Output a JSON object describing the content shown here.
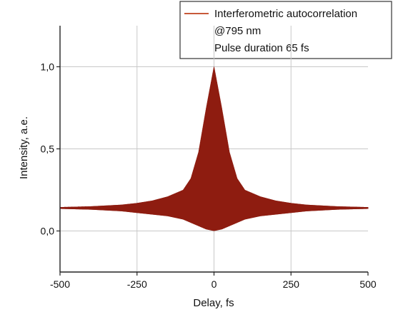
{
  "chart_data": {
    "type": "line",
    "xlabel": "Delay, fs",
    "ylabel": "Intensity, a.e.",
    "xlim": [
      -500,
      500
    ],
    "ylim": [
      -0.25,
      1.25
    ],
    "x_ticks": [
      -500,
      -250,
      0,
      250,
      500
    ],
    "x_tick_labels": [
      "-500",
      "-250",
      "0",
      "250",
      "500"
    ],
    "y_ticks": [
      0.0,
      0.5,
      1.0
    ],
    "y_tick_labels": [
      "0,0",
      "0,5",
      "1,0"
    ],
    "grid": true,
    "legend_position": "top-right",
    "series": [
      {
        "name": "Interferometric autocorrelation",
        "color": "#b5361d",
        "fill_color": "#8e1c10",
        "baseline": 0.14,
        "upper_envelope": {
          "x": [
            -500,
            -400,
            -300,
            -250,
            -200,
            -150,
            -100,
            -75,
            -50,
            -25,
            0,
            25,
            50,
            75,
            100,
            150,
            200,
            250,
            300,
            400,
            500
          ],
          "y": [
            0.145,
            0.15,
            0.16,
            0.17,
            0.185,
            0.21,
            0.25,
            0.32,
            0.48,
            0.75,
            1.0,
            0.75,
            0.48,
            0.32,
            0.25,
            0.21,
            0.185,
            0.17,
            0.16,
            0.15,
            0.145
          ]
        },
        "lower_envelope": {
          "x": [
            -500,
            -400,
            -300,
            -250,
            -200,
            -150,
            -100,
            -75,
            -50,
            -25,
            0,
            25,
            50,
            75,
            100,
            150,
            200,
            250,
            300,
            400,
            500
          ],
          "y": [
            0.135,
            0.13,
            0.12,
            0.11,
            0.1,
            0.09,
            0.07,
            0.05,
            0.03,
            0.01,
            0.0,
            0.01,
            0.03,
            0.05,
            0.07,
            0.09,
            0.1,
            0.11,
            0.12,
            0.13,
            0.135
          ]
        }
      }
    ],
    "legend_lines": [
      "Interferometric autocorrelation",
      "@795 nm",
      "Pulse duration 65 fs"
    ]
  }
}
